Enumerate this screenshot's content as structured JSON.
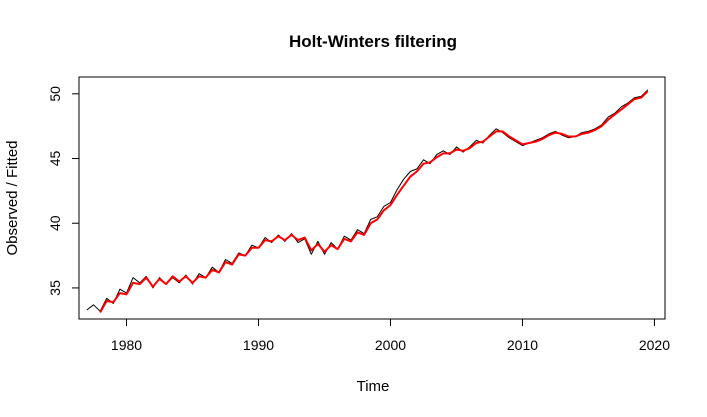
{
  "chart_data": {
    "type": "line",
    "title": "Holt-Winters filtering",
    "xlabel": "Time",
    "ylabel": "Observed / Fitted",
    "xlim": [
      1976.4,
      2020.8
    ],
    "ylim": [
      32.6,
      51.3
    ],
    "x_ticks": [
      1980,
      1990,
      2000,
      2010,
      2020
    ],
    "x_tick_labels": [
      "1980",
      "1990",
      "2000",
      "2010",
      "2020"
    ],
    "y_ticks": [
      35,
      40,
      45,
      50
    ],
    "y_tick_labels": [
      "35",
      "40",
      "45",
      "50"
    ],
    "grid": false,
    "legend": "none",
    "series": [
      {
        "color": "#000000",
        "x": [
          1977.0,
          1977.5,
          1978.0,
          1978.5,
          1979.0,
          1979.5,
          1980.0,
          1980.5,
          1981.0,
          1981.5,
          1982.0,
          1982.5,
          1983.0,
          1983.5,
          1984.0,
          1984.5,
          1985.0,
          1985.5,
          1986.0,
          1986.5,
          1987.0,
          1987.5,
          1988.0,
          1988.5,
          1989.0,
          1989.5,
          1990.0,
          1990.5,
          1991.0,
          1991.5,
          1992.0,
          1992.5,
          1993.0,
          1993.5,
          1994.0,
          1994.5,
          1995.0,
          1995.5,
          1996.0,
          1996.5,
          1997.0,
          1997.5,
          1998.0,
          1998.5,
          1999.0,
          1999.5,
          2000.0,
          2000.5,
          2001.0,
          2001.5,
          2002.0,
          2002.5,
          2003.0,
          2003.5,
          2004.0,
          2004.5,
          2005.0,
          2005.5,
          2006.0,
          2006.5,
          2007.0,
          2007.5,
          2008.0,
          2008.5,
          2009.0,
          2009.5,
          2010.0,
          2010.5,
          2011.0,
          2011.5,
          2012.0,
          2012.5,
          2013.0,
          2013.5,
          2014.0,
          2014.5,
          2015.0,
          2015.5,
          2016.0,
          2016.5,
          2017.0,
          2017.5,
          2018.0,
          2018.5,
          2019.0,
          2019.5
        ],
        "values": [
          33.3,
          33.7,
          33.2,
          34.2,
          33.8,
          34.9,
          34.6,
          35.8,
          35.4,
          35.9,
          35.0,
          35.8,
          35.3,
          35.8,
          35.4,
          36.0,
          35.3,
          36.1,
          35.8,
          36.6,
          36.2,
          37.2,
          36.9,
          37.7,
          37.5,
          38.3,
          38.1,
          38.9,
          38.5,
          39.1,
          38.6,
          39.2,
          38.5,
          38.8,
          37.6,
          38.6,
          37.6,
          38.5,
          38.0,
          39.0,
          38.7,
          39.5,
          39.2,
          40.3,
          40.5,
          41.3,
          41.6,
          42.6,
          43.4,
          44.0,
          44.2,
          44.9,
          44.6,
          45.3,
          45.6,
          45.3,
          45.9,
          45.5,
          45.9,
          46.4,
          46.2,
          46.8,
          47.3,
          47.0,
          46.6,
          46.3,
          46.0,
          46.2,
          46.4,
          46.6,
          46.9,
          47.1,
          46.8,
          46.6,
          46.7,
          47.0,
          47.1,
          47.3,
          47.6,
          48.2,
          48.5,
          49.0,
          49.3,
          49.7,
          49.8,
          50.3
        ]
      },
      {
        "color": "#ff0000",
        "x": [
          1978.0,
          1978.5,
          1979.0,
          1979.5,
          1980.0,
          1980.5,
          1981.0,
          1981.5,
          1982.0,
          1982.5,
          1983.0,
          1983.5,
          1984.0,
          1984.5,
          1985.0,
          1985.5,
          1986.0,
          1986.5,
          1987.0,
          1987.5,
          1988.0,
          1988.5,
          1989.0,
          1989.5,
          1990.0,
          1990.5,
          1991.0,
          1991.5,
          1992.0,
          1992.5,
          1993.0,
          1993.5,
          1994.0,
          1994.5,
          1995.0,
          1995.5,
          1996.0,
          1996.5,
          1997.0,
          1997.5,
          1998.0,
          1998.5,
          1999.0,
          1999.5,
          2000.0,
          2000.5,
          2001.0,
          2001.5,
          2002.0,
          2002.5,
          2003.0,
          2003.5,
          2004.0,
          2004.5,
          2005.0,
          2005.5,
          2006.0,
          2006.5,
          2007.0,
          2007.5,
          2008.0,
          2008.5,
          2009.0,
          2009.5,
          2010.0,
          2010.5,
          2011.0,
          2011.5,
          2012.0,
          2012.5,
          2013.0,
          2013.5,
          2014.0,
          2014.5,
          2015.0,
          2015.5,
          2016.0,
          2016.5,
          2017.0,
          2017.5,
          2018.0,
          2018.5,
          2019.0,
          2019.5
        ],
        "values": [
          33.1,
          34.0,
          33.9,
          34.6,
          34.5,
          35.4,
          35.3,
          35.8,
          35.1,
          35.7,
          35.3,
          35.9,
          35.5,
          35.9,
          35.4,
          35.9,
          35.8,
          36.4,
          36.2,
          37.0,
          36.8,
          37.6,
          37.5,
          38.1,
          38.1,
          38.7,
          38.6,
          39.0,
          38.7,
          39.1,
          38.7,
          38.9,
          37.9,
          38.4,
          37.8,
          38.3,
          38.0,
          38.8,
          38.6,
          39.3,
          39.1,
          40.0,
          40.3,
          41.0,
          41.4,
          42.2,
          42.9,
          43.6,
          44.0,
          44.6,
          44.7,
          45.1,
          45.4,
          45.4,
          45.7,
          45.6,
          45.8,
          46.2,
          46.3,
          46.7,
          47.1,
          47.1,
          46.7,
          46.4,
          46.1,
          46.2,
          46.3,
          46.5,
          46.8,
          47.0,
          46.9,
          46.7,
          46.7,
          46.9,
          47.0,
          47.2,
          47.5,
          48.0,
          48.4,
          48.8,
          49.2,
          49.6,
          49.7,
          50.2
        ]
      }
    ]
  }
}
